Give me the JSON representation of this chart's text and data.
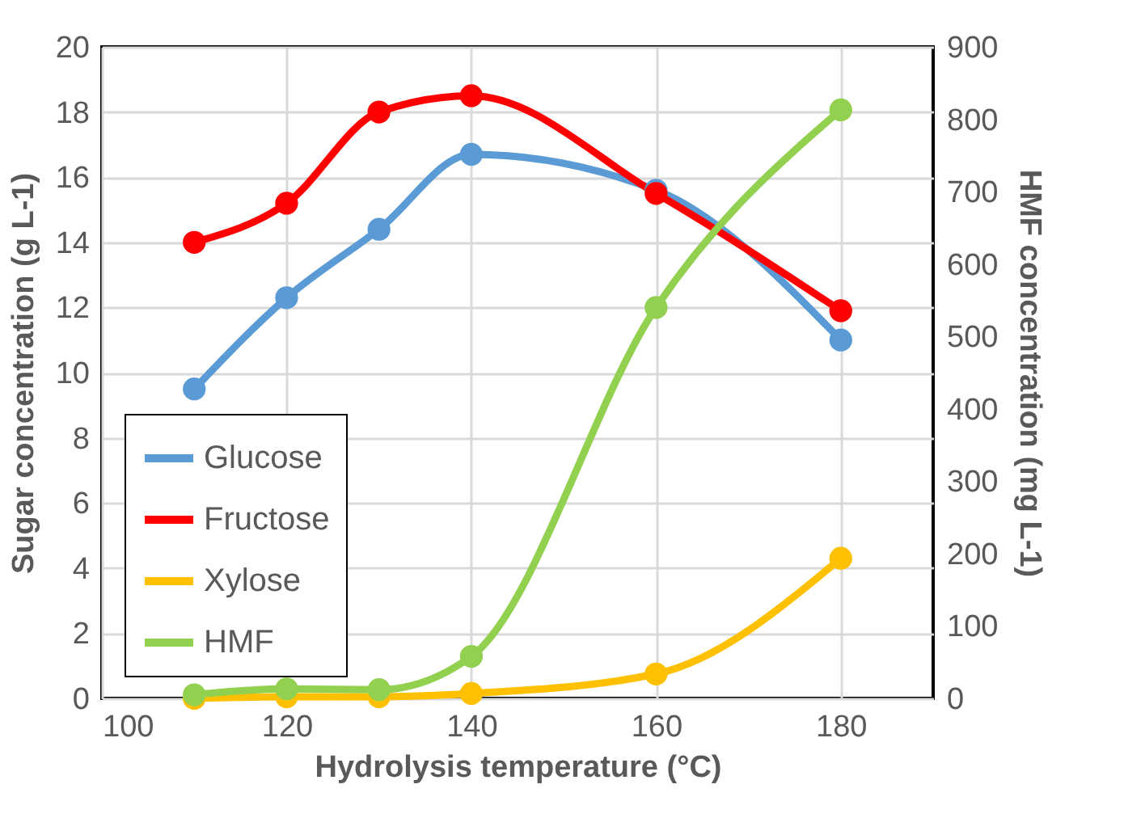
{
  "chart_data": {
    "type": "line",
    "xlabel": "Hydrolysis temperature (°C)",
    "ylabel": "Sugar concentration (g L-1)",
    "y2label": "HMF concentration (mg L-1)",
    "x": [
      110,
      120,
      130,
      140,
      160,
      180
    ],
    "series": [
      {
        "name": "Glucose",
        "color": "#5b9bd5",
        "values": [
          9.5,
          12.3,
          14.4,
          16.7,
          15.6,
          11.0
        ]
      },
      {
        "name": "Fructose",
        "color": "#ff0000",
        "values": [
          14.0,
          15.2,
          18.0,
          18.5,
          15.5,
          11.9
        ]
      },
      {
        "name": "Xylose",
        "color": "#ffc000",
        "values": [
          0.0,
          0.05,
          0.05,
          0.15,
          0.75,
          4.3
        ]
      },
      {
        "name": "HMF",
        "color": "#92d050",
        "axis": "y2",
        "values": [
          5,
          13,
          12,
          58,
          540,
          813
        ]
      }
    ],
    "xlim": [
      100,
      190
    ],
    "xticks": [
      100,
      120,
      140,
      160,
      180
    ],
    "ylim": [
      0,
      20
    ],
    "yticks": [
      0,
      2,
      4,
      6,
      8,
      10,
      12,
      14,
      16,
      18,
      20
    ],
    "y2lim": [
      0,
      900
    ],
    "y2ticks": [
      0,
      100,
      200,
      300,
      400,
      500,
      600,
      700,
      800,
      900
    ],
    "grid": true,
    "legend": "bottom left",
    "marker": "circle",
    "line_style": "solid"
  }
}
